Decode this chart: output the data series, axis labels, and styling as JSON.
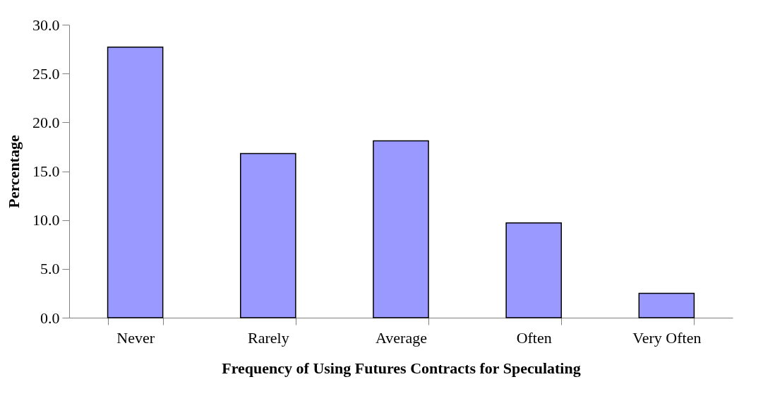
{
  "chart_data": {
    "type": "bar",
    "xlabel": "Frequency of Using Futures Contracts for Speculating",
    "ylabel": "Percentage",
    "categories": [
      "Never",
      "Rarely",
      "Average",
      "Often",
      "Very Often"
    ],
    "values": [
      27.7,
      16.8,
      18.1,
      9.7,
      2.5
    ],
    "color": "#9999ff",
    "ylim": [
      0,
      30
    ],
    "yticks": [
      {
        "value": 0,
        "label": "0.0"
      },
      {
        "value": 5,
        "label": "5.0"
      },
      {
        "value": 10,
        "label": "10.0"
      },
      {
        "value": 15,
        "label": "15.0"
      },
      {
        "value": 20,
        "label": "20.0"
      },
      {
        "value": 25,
        "label": "25.0"
      },
      {
        "value": 30,
        "label": "30.0"
      }
    ],
    "grid": false
  }
}
